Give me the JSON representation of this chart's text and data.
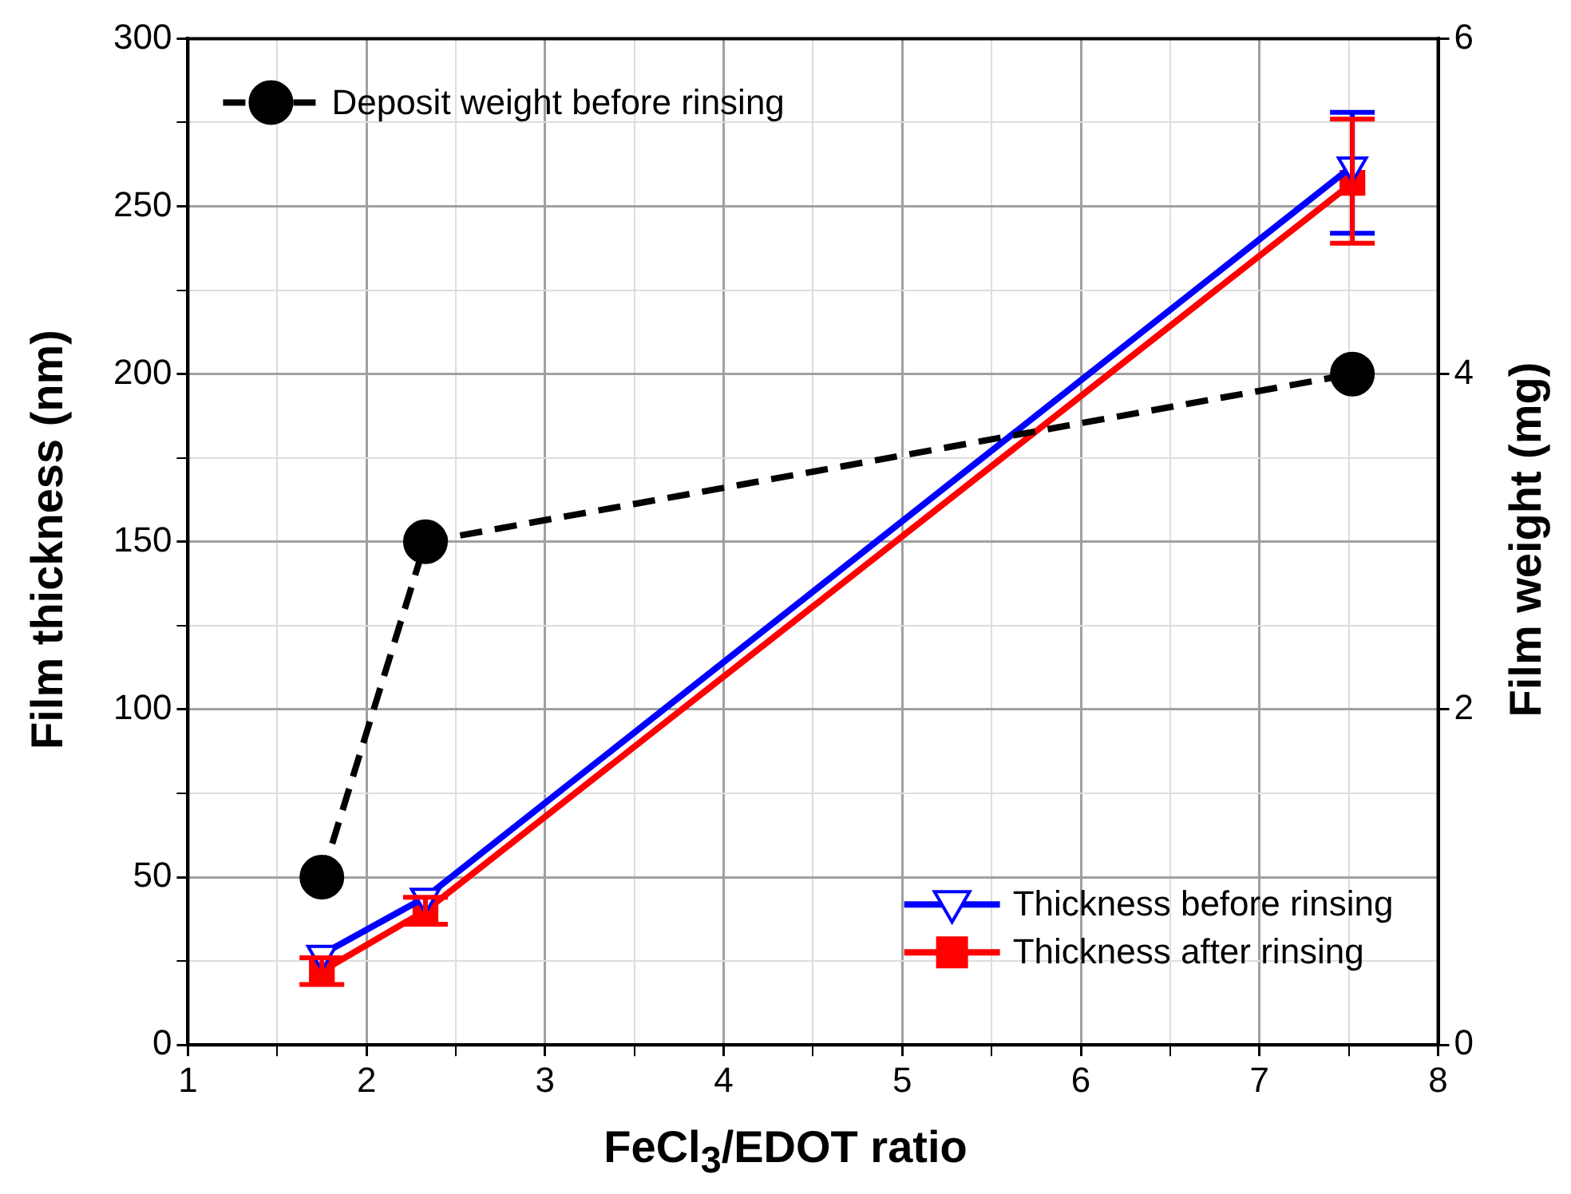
{
  "chart_data": {
    "type": "line",
    "xlabel": "FeCl$_{3}$/EDOT ratio",
    "ylabel": "Film thickness (nm)",
    "y2label": "Film weight (mg)",
    "x": [
      1.75,
      2.33,
      7.52
    ],
    "xlim": [
      1,
      8
    ],
    "xticks": [
      1,
      {
        "value": 1.5,
        "label": null
      },
      2,
      {
        "value": 2.5,
        "label": null
      },
      3,
      {
        "value": 3.5,
        "label": null
      },
      4,
      {
        "value": 4.5,
        "label": null
      },
      5,
      {
        "value": 5.5,
        "label": null
      },
      6,
      {
        "value": 6.5,
        "label": null
      },
      7,
      {
        "value": 7.5,
        "label": null
      },
      8
    ],
    "ylim": [
      0,
      300
    ],
    "yticks": [
      0,
      {
        "value": 25,
        "label": null
      },
      50,
      {
        "value": 75,
        "label": null
      },
      100,
      {
        "value": 125,
        "label": null
      },
      150,
      {
        "value": 175,
        "label": null
      },
      200,
      {
        "value": 225,
        "label": null
      },
      250,
      {
        "value": 275,
        "label": null
      },
      300
    ],
    "y2lim": [
      0,
      6
    ],
    "y2ticks": [
      0,
      2,
      4,
      6
    ],
    "grid": true,
    "legend": "top left",
    "series": [
      {
        "name": "Deposit weight before rinsing",
        "color": "#000000",
        "values": [
          1,
          3,
          4
        ],
        "axis": "y2",
        "marker": "circle",
        "line_style": "dashed"
      },
      {
        "name": "Thickness before rinsing",
        "color": "#0000ff",
        "values": [
          27,
          44,
          262
        ],
        "errors": [
          null,
          null,
          [
            242,
            278
          ]
        ],
        "marker": "triangle",
        "line_style": "solid"
      },
      {
        "name": "Thickness after rinsing",
        "color": "#ff0000",
        "values": [
          22,
          40,
          257
        ],
        "errors": [
          [
            18,
            26
          ],
          [
            36,
            44
          ],
          [
            239,
            276
          ]
        ],
        "marker": "square",
        "line_style": "solid"
      }
    ]
  }
}
